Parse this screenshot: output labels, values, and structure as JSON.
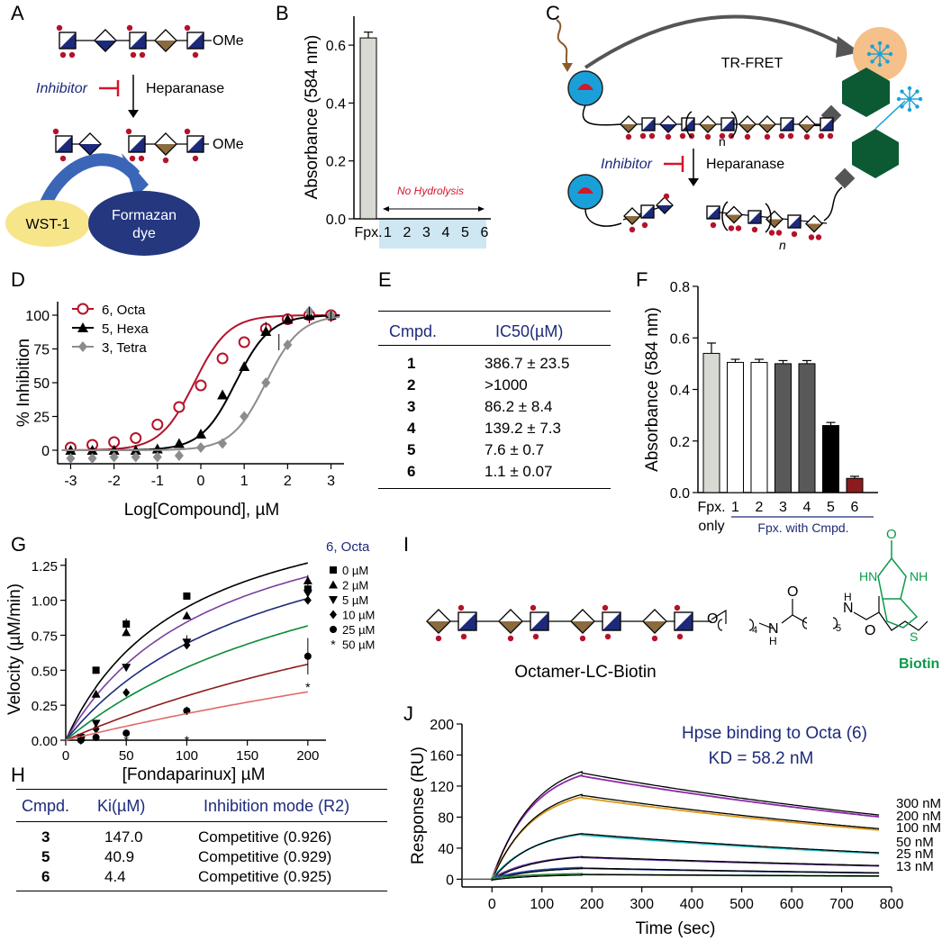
{
  "colors": {
    "navy": "#1d2a7a",
    "tan": "#8b6a3e",
    "red": "#b5122a",
    "green": "#0a9a4b",
    "dark_green": "#0b5a34",
    "cyan": "#1aa0d8",
    "wst": "#f7e58a",
    "formazan": "#24377f"
  },
  "panel_letters": [
    "A",
    "B",
    "C",
    "D",
    "E",
    "F",
    "G",
    "H",
    "I",
    "J"
  ],
  "panelA": {
    "heparanase": "Heparanase",
    "inhibitor": "Inhibitor",
    "ome": "OMe",
    "ome2": "OMe",
    "wst": "WST-1",
    "formazan": "Formazan",
    "formazan2": "dye"
  },
  "panelC": {
    "trfret": "TR-FRET",
    "inhibitor": "Inhibitor",
    "heparanase": "Heparanase",
    "n1": "n",
    "n2": "n"
  },
  "panelB": {
    "ylabel": "Absorbance (584 nm)",
    "note": "No Hydrolysis"
  },
  "panelI": {
    "caption": "Octamer-LC-Biotin",
    "biotin": "Biotin",
    "h1": "H",
    "h2": "H",
    "sub4": "4",
    "sub5": "5",
    "o1": "O",
    "o2": "O",
    "o3": "O",
    "o4": "O",
    "n1": "N",
    "n2": "N",
    "hn": "HN",
    "nh": "NH",
    "s": "S"
  },
  "tableE": {
    "headers": [
      "Cmpd.",
      "IC50(µM)"
    ],
    "rows": [
      [
        "1",
        "386.7 ± 23.5"
      ],
      [
        "2",
        ">1000"
      ],
      [
        "3",
        "86.2 ± 8.4"
      ],
      [
        "4",
        "139.2 ± 7.3"
      ],
      [
        "5",
        "7.6 ± 0.7"
      ],
      [
        "6",
        "1.1 ± 0.07"
      ]
    ]
  },
  "tableH": {
    "headers": [
      "Cmpd.",
      "Ki(µM)",
      "Inhibition mode (R2)"
    ],
    "rows": [
      [
        "3",
        "147.0",
        "Competitive (0.926)"
      ],
      [
        "5",
        "40.9",
        "Competitive (0.929)"
      ],
      [
        "6",
        "4.4",
        "Competitive (0.925)"
      ]
    ]
  },
  "chart_data": [
    {
      "id": "B",
      "type": "bar",
      "ylabel": "Absorbance (584 nm)",
      "categories": [
        "Fpx.",
        "1",
        "2",
        "3",
        "4",
        "5",
        "6"
      ],
      "values": [
        0.625,
        0,
        0,
        0,
        0,
        0,
        0
      ],
      "errors": [
        0.02,
        0,
        0,
        0,
        0,
        0,
        0
      ],
      "ylim": [
        0,
        0.7
      ],
      "yticks": [
        0.0,
        0.2,
        0.4,
        0.6
      ],
      "annotation": "No Hydrolysis"
    },
    {
      "id": "D",
      "type": "scatter",
      "xlabel": "Log[Compound], µM",
      "ylabel": "% Inhibition",
      "xlim": [
        -3.3,
        3.3
      ],
      "ylim": [
        -10,
        110
      ],
      "xticks": [
        -3,
        -2,
        -1,
        0,
        1,
        2,
        3
      ],
      "yticks": [
        0,
        25,
        50,
        75,
        100
      ],
      "series": [
        {
          "name": "6, Octa",
          "color": "#b5122a",
          "marker": "open-circle",
          "ec50": -0.15,
          "x": [
            -3,
            -2.5,
            -2,
            -1.5,
            -1,
            -0.5,
            0,
            0.5,
            1,
            1.5,
            2,
            2.5,
            3
          ],
          "y": [
            2,
            4,
            6,
            9,
            19,
            32,
            48,
            68,
            80,
            90,
            97,
            100,
            100
          ]
        },
        {
          "name": "5, Hexa",
          "color": "#000000",
          "marker": "triangle",
          "ec50": 0.8,
          "x": [
            -3,
            -2.5,
            -2,
            -1.5,
            -1,
            -0.5,
            0,
            0.5,
            1,
            1.5,
            2,
            2.5,
            3
          ],
          "y": [
            0,
            0,
            0,
            0,
            1,
            5,
            12,
            41,
            62,
            88,
            97,
            100,
            100
          ]
        },
        {
          "name": "3, Tetra",
          "color": "#8c8c8c",
          "marker": "diamond",
          "ec50": 1.5,
          "x": [
            -3,
            -2.5,
            -2,
            -1.5,
            -1,
            -0.5,
            0,
            0.5,
            1,
            1.5,
            2,
            2.5,
            3
          ],
          "y": [
            -6,
            -6,
            -5,
            -5,
            -5,
            -4,
            2,
            5,
            25,
            50,
            78,
            103,
            100
          ]
        }
      ]
    },
    {
      "id": "F",
      "type": "bar",
      "ylabel": "Absorbance (584 nm)",
      "categories": [
        "Fpx.",
        "1",
        "2",
        "3",
        "4",
        "5",
        "6"
      ],
      "sublabel": "only",
      "group_label": "Fpx. with Cmpd.",
      "values": [
        0.54,
        0.505,
        0.505,
        0.5,
        0.5,
        0.26,
        0.055
      ],
      "errors": [
        0.04,
        0.012,
        0.012,
        0.012,
        0.012,
        0.012,
        0.008
      ],
      "colors": [
        "#d9d9d4",
        "#ffffff",
        "#ffffff",
        "#595959",
        "#595959",
        "#000000",
        "#8b1c1c"
      ],
      "ylim": [
        0,
        0.8
      ],
      "yticks": [
        0.0,
        0.2,
        0.4,
        0.6,
        0.8
      ]
    },
    {
      "id": "G",
      "type": "scatter",
      "xlabel": "[Fondaparinux] µM",
      "ylabel": "Velocity (µM/min)",
      "legend_title": "6, Octa",
      "xlim": [
        0,
        215
      ],
      "ylim": [
        0,
        1.3
      ],
      "xticks": [
        0,
        50,
        100,
        150,
        200
      ],
      "yticks": [
        0.0,
        0.25,
        0.5,
        0.75,
        1.0,
        1.25
      ],
      "x": [
        12.5,
        25,
        50,
        100,
        200
      ],
      "series": [
        {
          "name": "0 µM",
          "color": "#000000",
          "marker": "square",
          "Vmax": 1.9,
          "Km": 100,
          "values": [
            0.02,
            0.5,
            0.83,
            1.03,
            1.08
          ]
        },
        {
          "name": "2 µM",
          "color": "#7b3fa0",
          "marker": "triangle",
          "Vmax": 1.9,
          "Km": 125,
          "values": [
            0.02,
            0.33,
            0.77,
            0.89,
            1.14
          ]
        },
        {
          "name": "5 µM",
          "color": "#1d2a7a",
          "marker": "tri-down",
          "Vmax": 1.9,
          "Km": 175,
          "values": [
            0.0,
            0.12,
            0.52,
            0.7,
            1.05
          ]
        },
        {
          "name": "10 µM",
          "color": "#0a8a3a",
          "marker": "diamond",
          "Vmax": 1.9,
          "Km": 265,
          "values": [
            0.0,
            0.08,
            0.34,
            0.68,
            1.0
          ]
        },
        {
          "name": "25 µM",
          "color": "#8b1c1c",
          "marker": "circle",
          "Vmax": 1.9,
          "Km": 500,
          "values": [
            0.0,
            0.02,
            0.05,
            0.21,
            0.6
          ]
        },
        {
          "name": "50 µM",
          "color": "#000000",
          "marker": "star",
          "Vmax": 1.9,
          "Km": 900,
          "values": [
            0.0,
            0.0,
            0.0,
            0.0,
            0.38
          ]
        }
      ]
    },
    {
      "id": "J",
      "type": "line",
      "title": "Hpse binding to Octa (6)",
      "kd_text": "KD = 58.2 nM",
      "xlabel": "Time (sec)",
      "ylabel": "Response (RU)",
      "xlim": [
        -60,
        800
      ],
      "ylim": [
        -10,
        200
      ],
      "xticks": [
        0,
        100,
        200,
        300,
        400,
        500,
        600,
        700,
        800
      ],
      "yticks": [
        0,
        40,
        80,
        120,
        160,
        200
      ],
      "assoc_end": 180,
      "series": [
        {
          "name": "300 nM",
          "peak": 133,
          "end": 80,
          "color": "#8a2aa8"
        },
        {
          "name": "200 nM",
          "peak": 105,
          "end": 63,
          "color": "#d89a1a"
        },
        {
          "name": "100 nM",
          "peak": 57,
          "end": 33,
          "color": "#1fb8c0"
        },
        {
          "name": "50 nM",
          "peak": 28,
          "end": 17,
          "color": "#6a3aa8"
        },
        {
          "name": "25 nM",
          "peak": 14,
          "end": 8,
          "color": "#2a4aa8"
        },
        {
          "name": "13 nM",
          "peak": 6,
          "end": 4,
          "color": "#2a8a3a"
        }
      ]
    }
  ]
}
